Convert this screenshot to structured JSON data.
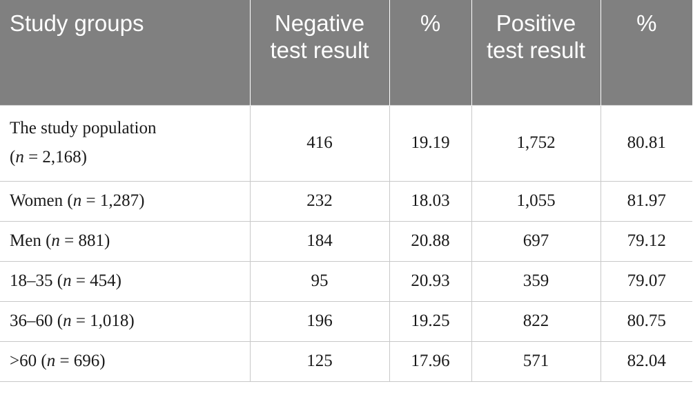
{
  "table": {
    "headers": [
      "Study groups",
      "Negative test result",
      "%",
      "Positive test result",
      "%"
    ],
    "rows": [
      {
        "label": "The study population",
        "n_prefix": "(",
        "n_value": " = 2,168)",
        "neg": "416",
        "neg_pct": "19.19",
        "pos": "1,752",
        "pos_pct": "80.81"
      },
      {
        "label": "Women ",
        "n_prefix": "(",
        "n_value": " = 1,287)",
        "neg": "232",
        "neg_pct": "18.03",
        "pos": "1,055",
        "pos_pct": "81.97"
      },
      {
        "label": "Men ",
        "n_prefix": "(",
        "n_value": " = 881)",
        "neg": "184",
        "neg_pct": "20.88",
        "pos": "697",
        "pos_pct": "79.12"
      },
      {
        "label": "18–35 ",
        "n_prefix": "(",
        "n_value": " = 454)",
        "neg": "95",
        "neg_pct": "20.93",
        "pos": "359",
        "pos_pct": "79.07"
      },
      {
        "label": "36–60 ",
        "n_prefix": "(",
        "n_value": " = 1,018)",
        "neg": "196",
        "neg_pct": "19.25",
        "pos": "822",
        "pos_pct": "80.75"
      },
      {
        "label": ">60 ",
        "n_prefix": "(",
        "n_value": " = 696)",
        "neg": "125",
        "neg_pct": "17.96",
        "pos": "571",
        "pos_pct": "82.04"
      }
    ],
    "n_symbol": "n"
  },
  "colors": {
    "header_bg": "#808080",
    "header_text": "#ffffff",
    "grid": "#c8c8c8"
  }
}
